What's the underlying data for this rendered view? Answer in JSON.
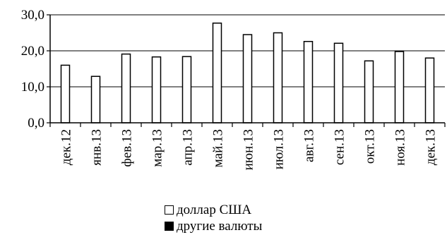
{
  "chart_data": {
    "type": "bar",
    "categories": [
      "дек.12",
      "янв.13",
      "фев.13",
      "мар.13",
      "апр.13",
      "май.13",
      "июн.13",
      "июл.13",
      "авг.13",
      "сен.13",
      "окт.13",
      "ноя.13",
      "дек.13"
    ],
    "series": [
      {
        "name": "доллар США",
        "values": [
          16.0,
          12.9,
          19.1,
          18.3,
          18.4,
          27.7,
          24.5,
          25.0,
          22.6,
          22.1,
          17.2,
          19.8,
          18.0
        ],
        "color": "#ffffff"
      },
      {
        "name": "другие валюты",
        "values": [
          0,
          0,
          0,
          0,
          0,
          0,
          0,
          0,
          0,
          0,
          0,
          0,
          0
        ],
        "color": "#000000"
      }
    ],
    "ylim": [
      0,
      30
    ],
    "yticks": [
      "0,0",
      "10,0",
      "20,0",
      "30,0"
    ],
    "grid": true,
    "legend_position": "bottom"
  }
}
